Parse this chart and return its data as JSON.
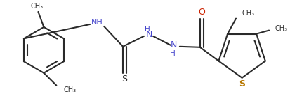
{
  "bg_color": "#ffffff",
  "line_color": "#2a2a2a",
  "heteroatom_color": "#4444cc",
  "sulfur_color": "#b87800",
  "oxygen_color": "#cc2200",
  "line_width": 1.5,
  "figsize": [
    4.14,
    1.35
  ],
  "dpi": 100,
  "xlim": [
    0,
    414
  ],
  "ylim": [
    0,
    135
  ]
}
